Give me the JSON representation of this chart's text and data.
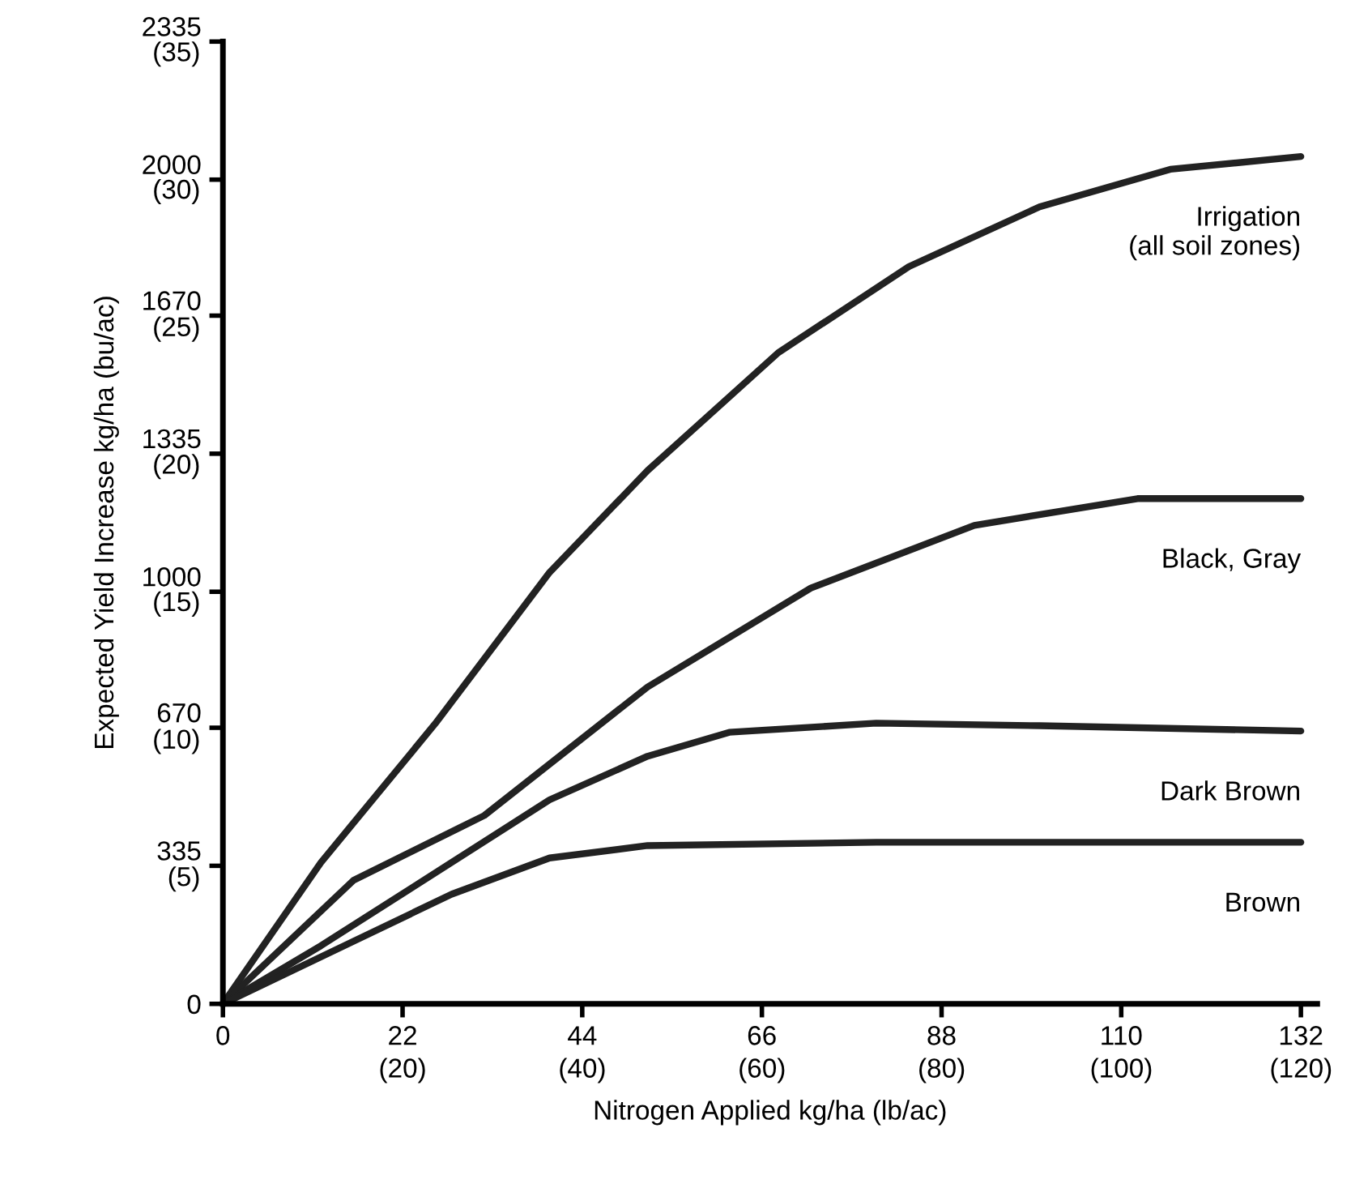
{
  "chart_data": {
    "type": "line",
    "xlabel": "Nitrogen Applied kg/ha (lb/ac)",
    "ylabel": "Expected Yield Increase kg/ha (bu/ac)",
    "xlim": [
      0,
      134
    ],
    "ylim": [
      0,
      2335
    ],
    "xticks": [
      0,
      22,
      44,
      66,
      88,
      110,
      132
    ],
    "yticks": [
      0,
      335,
      670,
      1000,
      1335,
      1670,
      2000,
      2335
    ],
    "x2lim": [
      0,
      121.8
    ],
    "x2ticks": [
      {
        "value": 20,
        "label": "(20)"
      },
      {
        "value": 40,
        "label": "(40)"
      },
      {
        "value": 60,
        "label": "(60)"
      },
      {
        "value": 80,
        "label": "(80)"
      },
      {
        "value": 100,
        "label": "(100)"
      },
      {
        "value": 120,
        "label": "(120)"
      }
    ],
    "y2lim": [
      0,
      35
    ],
    "y2ticks": [
      {
        "value": 5,
        "label": "(5)"
      },
      {
        "value": 10,
        "label": "(10)"
      },
      {
        "value": 15,
        "label": "(15)"
      },
      {
        "value": 20,
        "label": "(20)"
      },
      {
        "value": 25,
        "label": "(25)"
      },
      {
        "value": 30,
        "label": "(30)"
      },
      {
        "value": 35,
        "label": "(35)"
      }
    ],
    "grid": false,
    "legend": false,
    "marker": "none",
    "line_style": "solid",
    "series": [
      {
        "name": "Irrigation\n(all soil zones)",
        "color": "#222222",
        "x": [
          0,
          12,
          26,
          40,
          52,
          68,
          84,
          100,
          116,
          132
        ],
        "values": [
          0,
          343,
          680,
          1047,
          1294,
          1580,
          1789,
          1934,
          2025,
          2056
        ]
      },
      {
        "name": "Black, Gray",
        "color": "#222222",
        "x": [
          0,
          16,
          32,
          52,
          72,
          92,
          112,
          132
        ],
        "values": [
          0,
          300,
          457,
          769,
          1009,
          1161,
          1226,
          1226
        ]
      },
      {
        "name": "Dark Brown",
        "color": "#222222",
        "x": [
          0,
          12,
          28,
          40,
          52,
          62,
          80,
          100,
          132
        ],
        "values": [
          0,
          141,
          343,
          495,
          601,
          659,
          681,
          675,
          662
        ]
      },
      {
        "name": "Brown",
        "color": "#222222",
        "x": [
          0,
          16,
          28,
          40,
          52,
          80,
          132
        ],
        "values": [
          0,
          152,
          266,
          354,
          384,
          392,
          392
        ]
      }
    ]
  }
}
